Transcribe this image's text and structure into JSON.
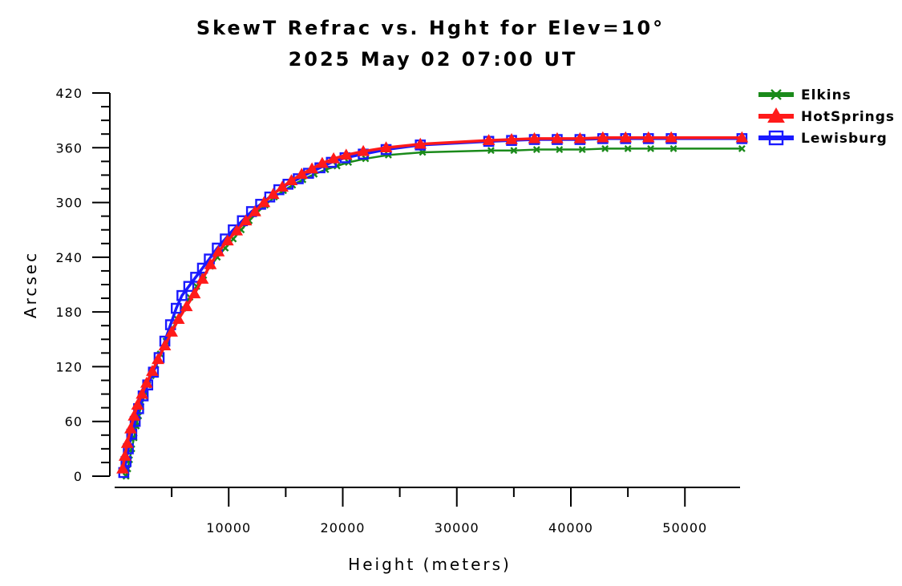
{
  "chart_data": {
    "type": "line",
    "title": "SkewT Refrac vs. Hght for Elev=10°",
    "subtitle": "2025 May 02 07:00 UT",
    "xlabel": "Height (meters)",
    "ylabel": "Arcsec",
    "xlim": [
      0,
      55000
    ],
    "ylim": [
      0,
      420
    ],
    "x_ticks": [
      10000,
      20000,
      30000,
      40000,
      50000
    ],
    "x_tick_labels": [
      "10000",
      "20000",
      "30000",
      "40000",
      "50000"
    ],
    "y_ticks": [
      0,
      60,
      120,
      180,
      240,
      300,
      360,
      420
    ],
    "y_tick_labels": [
      "0",
      "60",
      "120",
      "180",
      "240",
      "300",
      "360",
      "420"
    ],
    "grid": false,
    "legend_position": "top-right",
    "series": [
      {
        "name": "Elkins",
        "color": "#1a8a1a",
        "marker": "x",
        "x": [
          1000,
          1150,
          1300,
          1500,
          1700,
          1900,
          2100,
          2300,
          2600,
          2900,
          3200,
          3600,
          4000,
          4500,
          5000,
          5500,
          6000,
          6600,
          7200,
          7800,
          8400,
          9000,
          9700,
          10400,
          11100,
          11800,
          12500,
          13200,
          14000,
          14800,
          15600,
          16500,
          17500,
          18500,
          19500,
          20500,
          22000,
          24000,
          27000,
          33000,
          35000,
          37000,
          39000,
          41000,
          43000,
          45000,
          47000,
          49000,
          55000
        ],
        "y": [
          0,
          8,
          18,
          30,
          42,
          55,
          66,
          76,
          88,
          100,
          110,
          122,
          134,
          148,
          160,
          172,
          184,
          196,
          208,
          220,
          230,
          240,
          250,
          260,
          270,
          280,
          289,
          297,
          306,
          313,
          319,
          325,
          331,
          336,
          340,
          344,
          348,
          352,
          355,
          357,
          357,
          358,
          358,
          358,
          359,
          359,
          359,
          359,
          359
        ]
      },
      {
        "name": "HotSprings",
        "color": "#ff1a1a",
        "marker": "triangle",
        "x": [
          700,
          900,
          1100,
          1400,
          1700,
          2000,
          2400,
          2800,
          3300,
          3800,
          4400,
          5000,
          5600,
          6300,
          7000,
          7700,
          8400,
          9100,
          9900,
          10700,
          11500,
          12300,
          13100,
          13900,
          14700,
          15500,
          16400,
          17300,
          18200,
          19200,
          20300,
          21800,
          23800,
          26800,
          32800,
          34800,
          36800,
          38800,
          40800,
          42800,
          44800,
          46800,
          48800,
          55000
        ],
        "y": [
          8,
          22,
          36,
          52,
          66,
          78,
          90,
          102,
          115,
          128,
          143,
          158,
          172,
          186,
          200,
          216,
          232,
          246,
          258,
          269,
          280,
          290,
          300,
          309,
          317,
          324,
          331,
          337,
          343,
          348,
          352,
          356,
          360,
          364,
          368,
          369,
          370,
          370,
          370,
          371,
          371,
          371,
          371,
          371
        ]
      },
      {
        "name": "Lewisburg",
        "color": "#1a1aff",
        "marker": "square",
        "x": [
          800,
          1000,
          1200,
          1500,
          1800,
          2100,
          2500,
          2900,
          3400,
          3900,
          4400,
          4900,
          5400,
          5900,
          6500,
          7100,
          7700,
          8300,
          9000,
          9700,
          10400,
          11200,
          12000,
          12800,
          13600,
          14400,
          15200,
          16100,
          17000,
          18000,
          19000,
          20200,
          21800,
          23800,
          26800,
          32800,
          34800,
          36800,
          38800,
          40800,
          42800,
          44800,
          46800,
          48800,
          55000
        ],
        "y": [
          4,
          16,
          30,
          46,
          60,
          74,
          88,
          100,
          114,
          130,
          148,
          166,
          184,
          198,
          208,
          218,
          228,
          238,
          250,
          260,
          270,
          280,
          290,
          298,
          306,
          314,
          320,
          326,
          332,
          338,
          344,
          349,
          353,
          358,
          363,
          367,
          368,
          369,
          369,
          369,
          370,
          370,
          370,
          370,
          370
        ]
      }
    ]
  }
}
